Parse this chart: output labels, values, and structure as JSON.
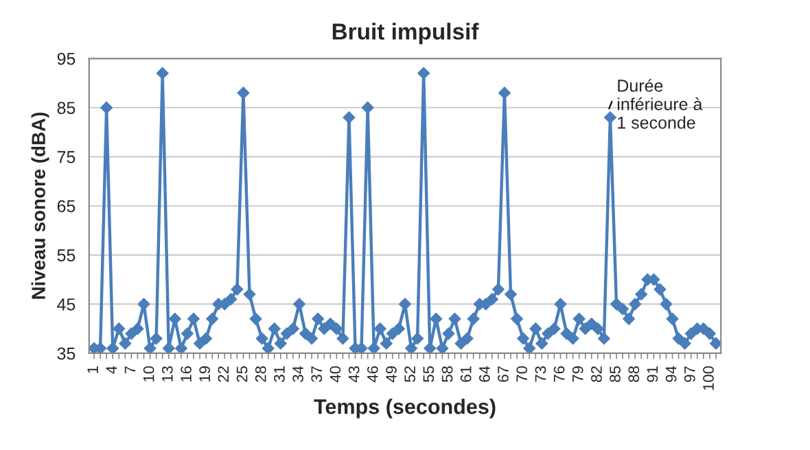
{
  "chart_data": {
    "type": "line",
    "title": "Bruit impulsif",
    "xlabel": "Temps (secondes)",
    "ylabel": "Niveau sonore (dBA)",
    "categories": [
      "1",
      null,
      null,
      "4",
      null,
      null,
      "7",
      null,
      null,
      "10",
      null,
      null,
      "13",
      null,
      null,
      "16",
      null,
      null,
      "19",
      null,
      null,
      "22",
      null,
      null,
      "25",
      null,
      null,
      "28",
      null,
      null,
      "31",
      null,
      null,
      "34",
      null,
      null,
      "37",
      null,
      null,
      "40",
      null,
      null,
      "43",
      null,
      null,
      "46",
      null,
      null,
      "49",
      null,
      null,
      "52",
      null,
      null,
      "55",
      null,
      null,
      "58",
      null,
      null,
      "61",
      null,
      null,
      "64",
      null,
      null,
      "67",
      null,
      null,
      "70",
      null,
      null,
      "73",
      null,
      null,
      "76",
      null,
      null,
      "79",
      null,
      null,
      "82",
      null,
      null,
      "85",
      null,
      null,
      "88",
      null,
      null,
      "91",
      null,
      null,
      "94",
      null,
      null,
      "97",
      null,
      null,
      "100",
      null
    ],
    "series": [
      {
        "color": "#4a7ebb",
        "values": [
          36,
          36,
          85,
          36,
          40,
          37,
          39,
          40,
          45,
          36,
          38,
          92,
          36,
          42,
          36,
          39,
          42,
          37,
          38,
          42,
          45,
          45,
          46,
          48,
          88,
          47,
          42,
          38,
          36,
          40,
          37,
          39,
          40,
          45,
          39,
          38,
          42,
          40,
          41,
          40,
          38,
          83,
          36,
          36,
          85,
          36,
          40,
          37,
          39,
          40,
          45,
          36,
          38,
          92,
          36,
          42,
          36,
          39,
          42,
          37,
          38,
          42,
          45,
          45,
          46,
          48,
          88,
          47,
          42,
          38,
          36,
          40,
          37,
          39,
          40,
          45,
          39,
          38,
          42,
          40,
          41,
          40,
          38,
          83,
          45,
          44,
          42,
          45,
          47,
          50,
          50,
          48,
          45,
          42,
          38,
          37,
          39,
          40,
          40,
          39,
          37
        ]
      }
    ],
    "ylim": [
      35,
      95
    ],
    "yticks": [
      35,
      45,
      55,
      65,
      75,
      85,
      95
    ],
    "grid": "y",
    "marker": "diamond",
    "line_style": "solid",
    "annotations": [
      "Durée\ninférieure à\n1 seconde"
    ]
  }
}
